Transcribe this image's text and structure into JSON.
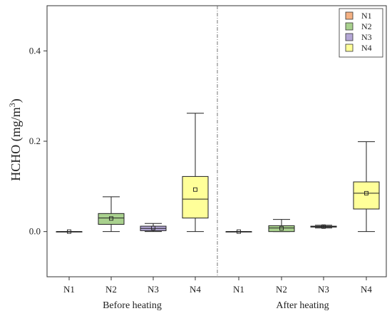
{
  "chart_data": {
    "type": "boxplot",
    "ylabel": "HCHO (mg/m³)",
    "ylabel_main": "HCHO (mg/m",
    "ylabel_sup": "3",
    "ylabel_close": ")",
    "ylim": [
      -0.1,
      0.5
    ],
    "yticks": [
      0.0,
      0.2,
      0.4
    ],
    "ytick_labels": [
      "0.0",
      "0.2",
      "0.4"
    ],
    "grid": false,
    "legend_position": "top-right",
    "categories": [
      "N1",
      "N2",
      "N3",
      "N4"
    ],
    "groups": [
      {
        "label": "Before heating",
        "boxes": [
          {
            "name": "N1",
            "min": 0.0,
            "q1": 0.0,
            "median": 0.0,
            "q3": 0.0,
            "max": 0.0,
            "mean": 0.0,
            "color": "#f4b183"
          },
          {
            "name": "N2",
            "min": 0.0,
            "q1": 0.016,
            "median": 0.03,
            "q3": 0.04,
            "max": 0.077,
            "mean": 0.029,
            "color": "#a9d18e"
          },
          {
            "name": "N3",
            "min": 0.0,
            "q1": 0.002,
            "median": 0.007,
            "q3": 0.012,
            "max": 0.018,
            "mean": 0.008,
            "color": "#b4a7d6"
          },
          {
            "name": "N4",
            "min": 0.0,
            "q1": 0.03,
            "median": 0.072,
            "q3": 0.122,
            "max": 0.262,
            "mean": 0.093,
            "color": "#ffff99"
          }
        ]
      },
      {
        "label": "After heating",
        "boxes": [
          {
            "name": "N1",
            "min": 0.0,
            "q1": 0.0,
            "median": 0.0,
            "q3": 0.0,
            "max": 0.0,
            "mean": 0.0,
            "color": "#f4b183"
          },
          {
            "name": "N2",
            "min": 0.0,
            "q1": 0.0,
            "median": 0.008,
            "q3": 0.013,
            "max": 0.027,
            "mean": 0.007,
            "color": "#a9d18e"
          },
          {
            "name": "N3",
            "min": 0.008,
            "q1": 0.01,
            "median": 0.011,
            "q3": 0.012,
            "max": 0.014,
            "mean": 0.011,
            "color": "#b4a7d6"
          },
          {
            "name": "N4",
            "min": 0.0,
            "q1": 0.05,
            "median": 0.085,
            "q3": 0.11,
            "max": 0.199,
            "mean": 0.085,
            "color": "#ffff99"
          }
        ]
      }
    ],
    "legend": [
      {
        "name": "N1",
        "color": "#f4b183"
      },
      {
        "name": "N2",
        "color": "#a9d18e"
      },
      {
        "name": "N3",
        "color": "#b4a7d6"
      },
      {
        "name": "N4",
        "color": "#ffff99"
      }
    ]
  }
}
